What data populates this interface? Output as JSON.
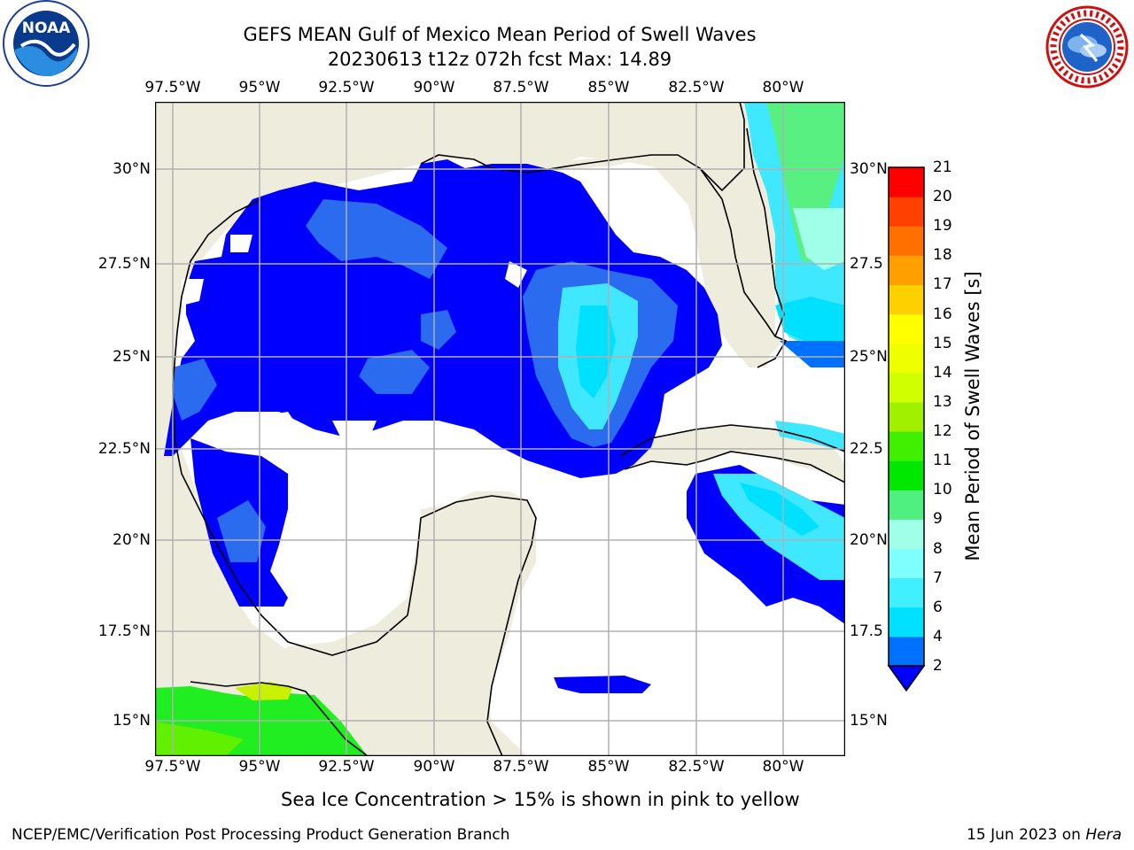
{
  "header": {
    "title_line1": "GEFS MEAN Gulf of Mexico Mean Period of Swell Waves",
    "title_line2": "20230613 t12z 072h fcst   Max: 14.89"
  },
  "logos": {
    "left": "noaa-logo",
    "right": "nws-logo"
  },
  "map": {
    "lon_labels": [
      "97.5°W",
      "95°W",
      "92.5°W",
      "90°W",
      "87.5°W",
      "85°W",
      "82.5°W",
      "80°W"
    ],
    "lat_labels_left": [
      "30°N",
      "27.5°N",
      "25°N",
      "22.5°N",
      "20°N",
      "17.5°N",
      "15°N"
    ],
    "lat_labels_right": [
      "30°N",
      "27.5",
      "25°N",
      "22.5",
      "20°N",
      "17.5",
      "15°N"
    ],
    "colors": {
      "land": "#eeecdc",
      "ocean_undef": "#ffffff",
      "grid": "#b0b0b0",
      "coast": "#000000"
    }
  },
  "colorbar": {
    "label": "Mean Period of Swell Waves [s]",
    "ticks": [
      "2",
      "4",
      "6",
      "7",
      "8",
      "9",
      "10",
      "11",
      "12",
      "13",
      "14",
      "15",
      "16",
      "17",
      "18",
      "19",
      "20",
      "21"
    ],
    "colors": [
      "#0000ff",
      "#0070ff",
      "#00e0ff",
      "#40f0ff",
      "#80ffff",
      "#a0ffe8",
      "#50f080",
      "#00e800",
      "#40f000",
      "#a0f000",
      "#d0ff00",
      "#f0ff00",
      "#ffff00",
      "#ffd000",
      "#ffa000",
      "#ff7000",
      "#ff4000",
      "#ff0000"
    ]
  },
  "note": "Sea Ice Concentration > 15% is shown in pink to yellow",
  "footer": {
    "left": "NCEP/EMC/Verification Post Processing Product Generation Branch",
    "date": "15 Jun 2023 on ",
    "host": "Hera"
  }
}
